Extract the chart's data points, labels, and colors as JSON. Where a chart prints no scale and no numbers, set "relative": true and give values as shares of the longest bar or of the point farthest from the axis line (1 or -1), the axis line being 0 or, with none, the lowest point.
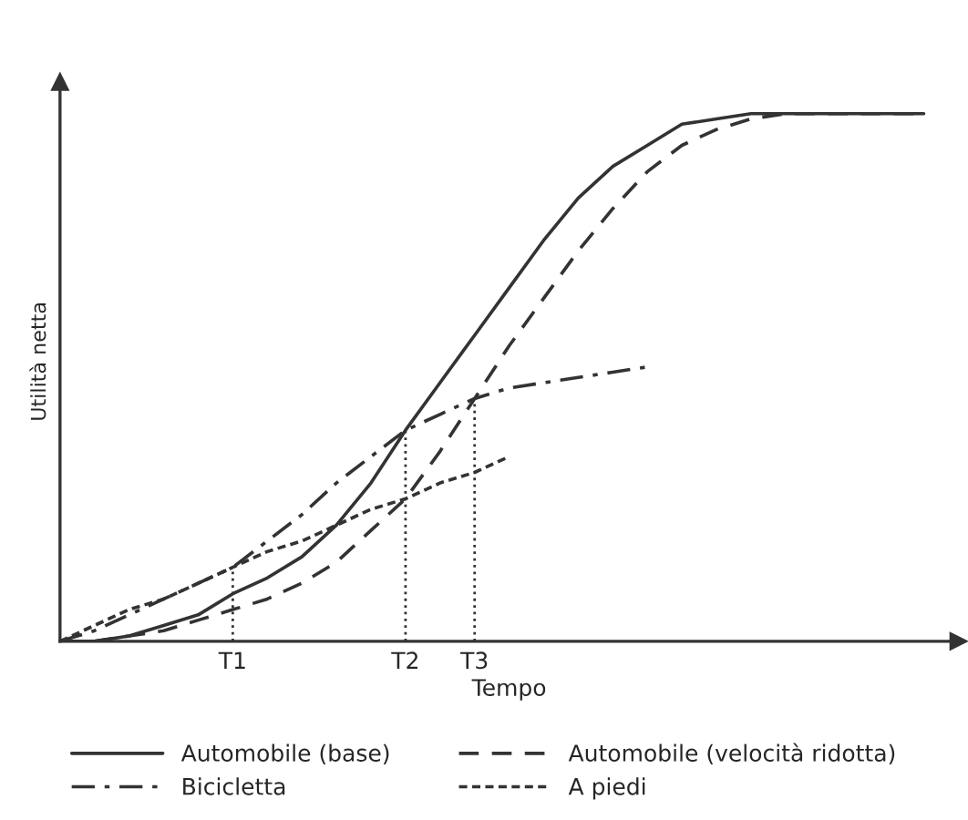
{
  "chart_data": {
    "type": "line",
    "relative": true,
    "xlabel": "Tempo",
    "ylabel": "Utilità netta",
    "categories": [
      null,
      null,
      null,
      null,
      null,
      "T1",
      null,
      null,
      null,
      null,
      "T2",
      null,
      "T3",
      null,
      null,
      null,
      null,
      null,
      null,
      null,
      null,
      null,
      null,
      null,
      null,
      null
    ],
    "series": [
      {
        "name": "Automobile (base)",
        "color": "#333333",
        "line_style": "solid",
        "values": [
          0,
          0.0,
          0.01,
          0.03,
          0.05,
          0.09,
          0.12,
          0.16,
          0.22,
          0.3,
          0.4,
          0.49,
          0.58,
          0.67,
          0.76,
          0.84,
          0.9,
          0.94,
          0.98,
          0.99,
          1,
          1,
          1,
          1,
          1,
          1
        ]
      },
      {
        "name": "Automobile (velocità ridotta)",
        "color": "#333333",
        "line_style": "dashed",
        "values": [
          0,
          0.0,
          0.01,
          0.02,
          0.04,
          0.06,
          0.08,
          0.11,
          0.15,
          0.21,
          0.27,
          0.36,
          0.46,
          0.56,
          0.65,
          0.74,
          0.82,
          0.89,
          0.94,
          0.97,
          0.99,
          1,
          1,
          1,
          1,
          1
        ]
      },
      {
        "name": "Bicicletta",
        "color": "#333333",
        "line_style": "dashdot",
        "values": [
          0,
          0.02,
          0.05,
          0.08,
          0.11,
          0.14,
          0.19,
          0.24,
          0.3,
          0.35,
          0.4,
          0.43,
          0.46,
          0.48,
          0.49,
          0.5,
          0.51,
          0.52,
          null,
          null,
          null,
          null,
          null,
          null,
          null,
          null
        ]
      },
      {
        "name": "A piedi",
        "color": "#333333",
        "line_style": "dotted",
        "values": [
          0,
          0.03,
          0.06,
          0.08,
          0.11,
          0.14,
          0.17,
          0.19,
          0.22,
          0.25,
          0.27,
          0.3,
          0.32,
          0.35,
          null,
          null,
          null,
          null,
          null,
          null,
          null,
          null,
          null,
          null,
          null,
          null
        ]
      }
    ],
    "ref_lines": [
      {
        "axis": "x",
        "value": "T1",
        "color": "#333333",
        "line_style": "dotted"
      },
      {
        "axis": "x",
        "value": "T2",
        "color": "#333333",
        "line_style": "dotted"
      },
      {
        "axis": "x",
        "value": "T3",
        "color": "#333333",
        "line_style": "dotted"
      }
    ],
    "legend": "bottom",
    "grid": false
  }
}
